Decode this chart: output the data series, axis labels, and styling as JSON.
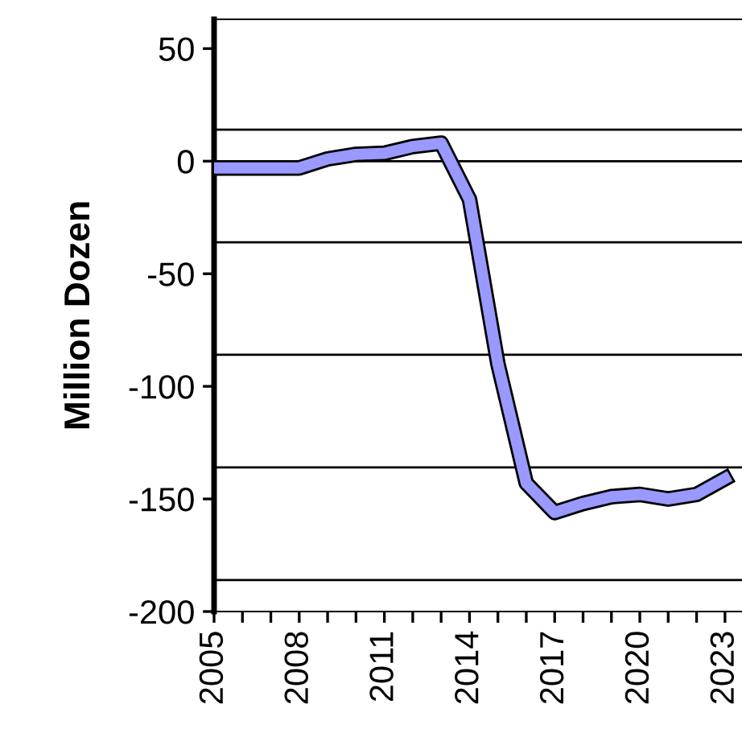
{
  "chart_data": {
    "type": "line",
    "ylabel": "Million Dozen",
    "x": [
      2005,
      2006,
      2007,
      2008,
      2009,
      2010,
      2011,
      2012,
      2013,
      2014,
      2015,
      2016,
      2017,
      2018,
      2019,
      2020,
      2021,
      2022,
      2023
    ],
    "series": [
      {
        "color": "#9999ff",
        "values": [
          -3,
          -3,
          -3,
          -3,
          1,
          3,
          3.5,
          6.5,
          8,
          -17,
          -90,
          -143,
          -156,
          -152,
          -149,
          -148,
          -150,
          -148,
          -141
        ]
      }
    ],
    "xlim": [
      2005,
      2023.6
    ],
    "xticks": [
      2005,
      {
        "value": 2006,
        "label": null
      },
      {
        "value": 2007,
        "label": null
      },
      2008,
      {
        "value": 2009,
        "label": null
      },
      {
        "value": 2010,
        "label": null
      },
      2011,
      {
        "value": 2012,
        "label": null
      },
      {
        "value": 2013,
        "label": null
      },
      2014,
      {
        "value": 2015,
        "label": null
      },
      {
        "value": 2016,
        "label": null
      },
      2017,
      {
        "value": 2018,
        "label": null
      },
      {
        "value": 2019,
        "label": null
      },
      2020,
      {
        "value": 2021,
        "label": null
      },
      {
        "value": 2022,
        "label": null
      },
      2023
    ],
    "ylim": [
      -200,
      63
    ],
    "yticks": [
      -200,
      -150,
      -100,
      -50,
      0,
      50
    ],
    "ref_lines": [
      {
        "axis": "y",
        "value": 14,
        "color": "#000000"
      },
      {
        "axis": "y",
        "value": 0,
        "color": "#000000"
      },
      {
        "axis": "y",
        "value": -36,
        "color": "#000000"
      },
      {
        "axis": "y",
        "value": -86,
        "color": "#000000"
      },
      {
        "axis": "y",
        "value": -136,
        "color": "#000000"
      },
      {
        "axis": "y",
        "value": -186,
        "color": "#000000"
      }
    ],
    "grid": false,
    "legend": false,
    "marker": "none",
    "line_style": "solid"
  }
}
